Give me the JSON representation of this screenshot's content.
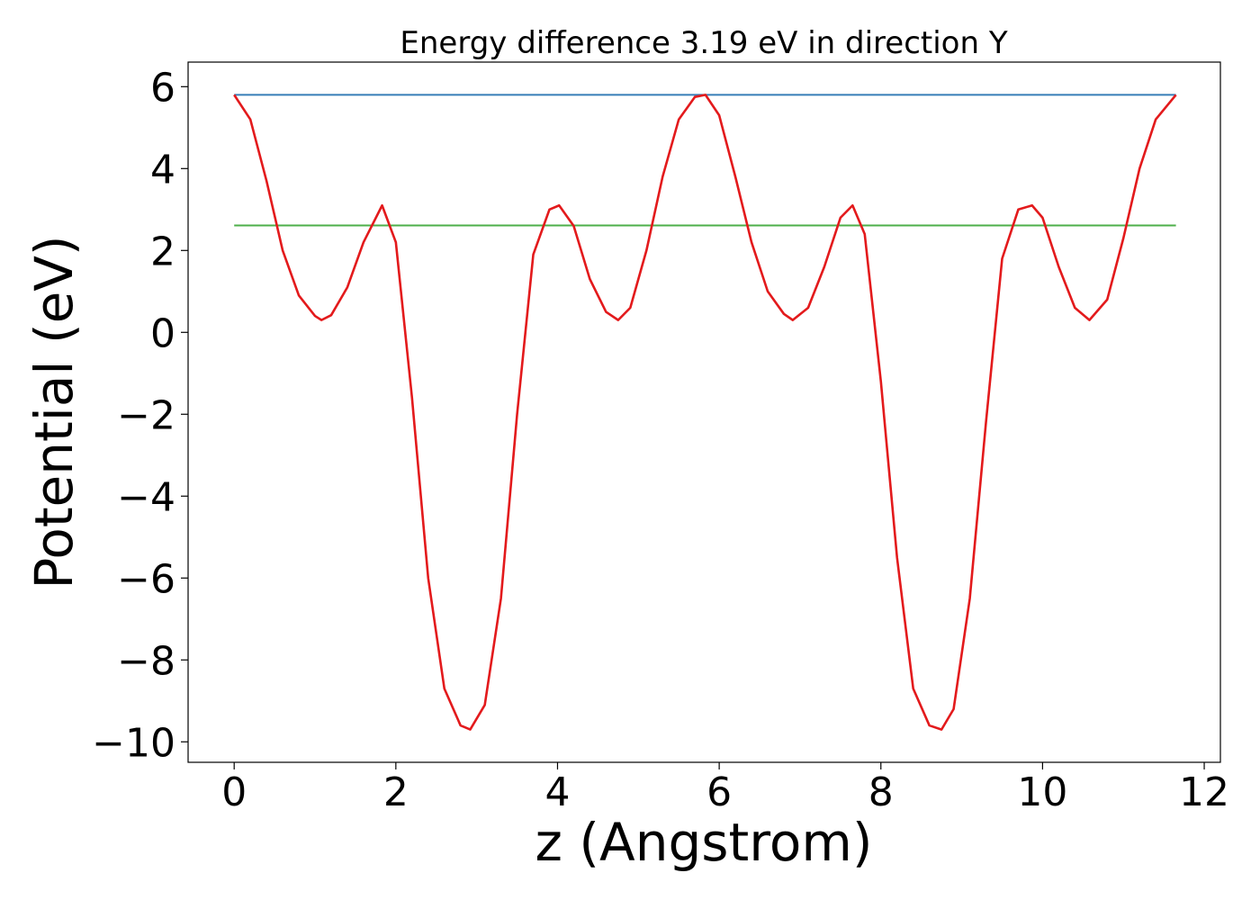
{
  "chart_data": {
    "type": "line",
    "title": "Energy difference 3.19 eV in direction Y",
    "xlabel": "z (Angstrom)",
    "ylabel": "Potential (eV)",
    "xlim": [
      -0.57,
      12.2
    ],
    "ylim": [
      -10.5,
      6.6
    ],
    "xticks": [
      0,
      2,
      4,
      6,
      8,
      10,
      12
    ],
    "xtick_labels": [
      "0",
      "2",
      "4",
      "6",
      "8",
      "10",
      "12"
    ],
    "yticks": [
      6,
      4,
      2,
      0,
      -2,
      -4,
      -6,
      -8,
      -10
    ],
    "ytick_labels": [
      "6",
      "4",
      "2",
      "0",
      "−2",
      "−4",
      "−6",
      "−8",
      "−10"
    ],
    "grid": false,
    "legend": "none",
    "series": [
      {
        "color": "#e31a1c",
        "x": [
          0.0,
          0.2,
          0.4,
          0.6,
          0.8,
          1.0,
          1.08,
          1.2,
          1.4,
          1.6,
          1.83,
          2.0,
          2.2,
          2.4,
          2.6,
          2.8,
          2.92,
          3.1,
          3.3,
          3.5,
          3.7,
          3.9,
          4.02,
          4.2,
          4.4,
          4.6,
          4.75,
          4.9,
          5.1,
          5.3,
          5.5,
          5.7,
          5.83,
          6.0,
          6.2,
          6.4,
          6.6,
          6.8,
          6.91,
          7.1,
          7.3,
          7.5,
          7.65,
          7.8,
          8.0,
          8.2,
          8.4,
          8.6,
          8.75,
          8.9,
          9.1,
          9.3,
          9.5,
          9.7,
          9.87,
          10.0,
          10.2,
          10.4,
          10.58,
          10.8,
          11.0,
          11.2,
          11.4,
          11.65
        ],
        "y": [
          5.8,
          5.2,
          3.7,
          2.0,
          0.9,
          0.4,
          0.3,
          0.42,
          1.1,
          2.2,
          3.1,
          2.2,
          -1.6,
          -6.0,
          -8.7,
          -9.6,
          -9.7,
          -9.1,
          -6.5,
          -2.0,
          1.9,
          3.0,
          3.1,
          2.6,
          1.3,
          0.5,
          0.3,
          0.6,
          2.0,
          3.8,
          5.2,
          5.75,
          5.8,
          5.3,
          3.8,
          2.2,
          1.0,
          0.45,
          0.3,
          0.6,
          1.6,
          2.8,
          3.1,
          2.4,
          -1.2,
          -5.5,
          -8.7,
          -9.6,
          -9.7,
          -9.2,
          -6.5,
          -2.2,
          1.8,
          3.0,
          3.1,
          2.8,
          1.6,
          0.6,
          0.3,
          0.8,
          2.3,
          4.0,
          5.2,
          5.8
        ]
      },
      {
        "color": "#377eb8",
        "x": [
          0.0,
          11.65
        ],
        "y": [
          5.8,
          5.8
        ]
      },
      {
        "color": "#4daf4a",
        "x": [
          0.0,
          11.65
        ],
        "y": [
          2.61,
          2.61
        ]
      }
    ]
  }
}
